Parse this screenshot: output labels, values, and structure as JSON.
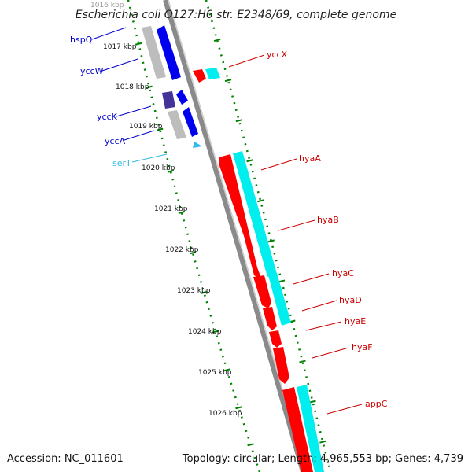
{
  "title": "Escherichia coli O127:H6 str. E2348/69, complete genome",
  "accession": "Accession: NC_011601",
  "summary": "Topology: circular; Length: 4,965,553 bp; Genes: 4,739",
  "colors": {
    "backbone": "#888888",
    "tick_green": "#008000",
    "forward_blue": "#0000ee",
    "forward_gray": "#bbbbbb",
    "reverse_red": "#ff0000",
    "reverse_cyan": "#00e5ee",
    "trna": "#33bbee",
    "dark_purple": "#443399"
  },
  "kbp_markers": [
    "1016 kbp",
    "1017 kbp",
    "1018 kbp",
    "1019 kbp",
    "1020 kbp",
    "1021 kbp",
    "1022 kbp",
    "1023 kbp",
    "1024 kbp",
    "1025 kbp",
    "1026 kbp"
  ],
  "left_genes": [
    {
      "name": "hspQ",
      "color": "#0000cc"
    },
    {
      "name": "yccW",
      "color": "#0000cc"
    },
    {
      "name": "yccK",
      "color": "#0000cc"
    },
    {
      "name": "yccA",
      "color": "#0000cc"
    },
    {
      "name": "serT",
      "color": "#33bbdd"
    }
  ],
  "right_genes": [
    {
      "name": "yccX",
      "color": "#cc0000"
    },
    {
      "name": "hyaA",
      "color": "#cc0000"
    },
    {
      "name": "hyaB",
      "color": "#cc0000"
    },
    {
      "name": "hyaC",
      "color": "#cc0000"
    },
    {
      "name": "hyaD",
      "color": "#cc0000"
    },
    {
      "name": "hyaE",
      "color": "#cc0000"
    },
    {
      "name": "hyaF",
      "color": "#cc0000"
    },
    {
      "name": "appC",
      "color": "#cc0000"
    }
  ]
}
